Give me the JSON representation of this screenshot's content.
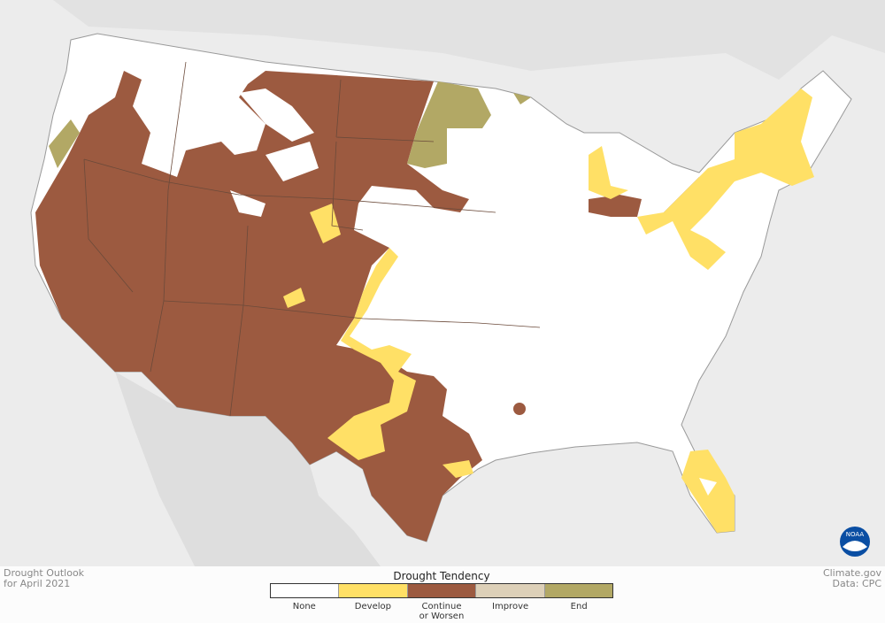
{
  "map": {
    "title_lines": [
      "Drought Outlook",
      "for April 2021"
    ],
    "credit_lines": [
      "Climate.gov",
      "Data: CPC"
    ],
    "logo": "NOAA",
    "legend": {
      "title": "Drought Tendency",
      "items": [
        {
          "name": "None",
          "color": "#ffffff"
        },
        {
          "name": "Develop",
          "color": "#ffe066"
        },
        {
          "name": "Continue or Worsen",
          "color": "#9c5a40"
        },
        {
          "name": "Improve",
          "color": "#ddd0b8"
        },
        {
          "name": "End",
          "color": "#b2a865"
        }
      ]
    }
  }
}
